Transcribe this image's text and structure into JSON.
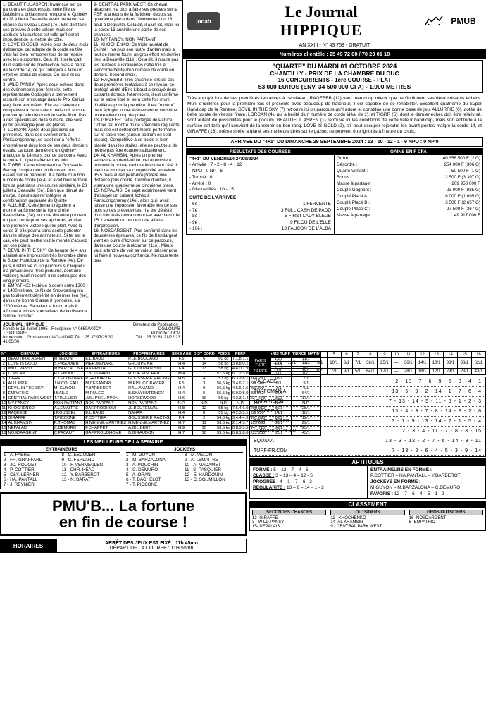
{
  "masthead": {
    "lonab": "lonab",
    "title1": "Le Journal",
    "title2": "HIPPIQUE",
    "pmub": "PMUB",
    "edition": "AN XXIII - N° 43 759 - GRATUIT",
    "tel": "Numéros clientèle : 25 49 72 00 / 70 20 01 10"
  },
  "race": {
    "l1": "\"QUARTE\" DU MARDI 01 OCTOBRE 2024",
    "l2": "CHANTILLY - PRIX DE LA CHAMBRE DU DUC",
    "l3": "16 CONCURRENTS - 1ère COURSE - PLAT",
    "l4": "53 000 EUROS (ENV. 34 500 000 CFA) - 1.900 METRES"
  },
  "para": "Très appuyé lors de ses premières tentatives à ce niveau, RAQEEBB (12) vaut beaucoup mieux que ne l'indiquent ses deux cuisants échecs. Muni d'œillères pour la première fois et présenté avec beaucoup de fraîcheur, il est capable de se réhabiliter. Excellent quatrième du Super Handicap de la Rentrée, DEVIL IN THE SKY (7) retrouve ici un parcours qu'il adore et constitue une bonne base de jeu. ALLURRIE (6), dotée de belle pointe de vitesse finale, LORCAN (4), qui a hérité d'un numéro de corde idéal (le 1), et TIGRR (5), dont le dernier échec doit être relativisé, sont autant de possibilités pour le podium. BEAUTIFUL ASPEN (1) retrouve ici les conditions de cette valeur handicap, mais son aptitude à la surface est telle qu'il convient de la retenir en bon rang. LOVE IS GOLD (2), s'il peut occuper rejoindre les avant-postes malgré la corde 14, et GIRAFFE (13), même si elle a glané ses meilleurs titres sur le gazon, ne peuvent être ignorés à l'heure du choix.",
  "arrivee": "ARRIVEE DU \"4+1\" DU DIMANCHE 29 SEPTEMBRE 2024 : 13 - 10 - 12 - 1 - 9 NPO : 0 NP 0",
  "resultats_hdr": "RESULTATS DES COURSES",
  "gains_hdr": "GAINS EN F CFA",
  "resultats": {
    "title": "\"4+1\" DU VENDREDI 27/09/2024",
    "arr": "- Arrivée : 7 - 2 - 8 - 4 - 12",
    "npo": "- NPO : 0  NP : 6",
    "tom": "- Tombé : 0",
    "arre": "- Arrêté : 0",
    "dis": "- Disqualifiés : 10 - 15",
    "suite": "SUITE DE L'ARRIVÉE",
    "s1l": "- 6è :",
    "s1r": "1   FERVENTE",
    "s2l": "- 7è :",
    "s2r": "3   FULL CASH DE PADD",
    "s3l": "- 8è :",
    "s3r": "5   FIRST LADY BLEUE",
    "s4l": "- 9è :",
    "s4r": "9   FILOU DE L'ELLE",
    "s5l": "- 10è :",
    "s5r": "13  FAUCON DE L'ALBA"
  },
  "gains": [
    [
      "Ordre :",
      "40 356 500 F (2 G)"
    ],
    [
      "Désordre :",
      "254 000 F (306 G)"
    ],
    [
      "Quarté Venant :",
      "50 500 F (1 G)"
    ],
    [
      "Bonus :",
      "12 500 F (3 397 G)"
    ],
    [
      "Masse à partager",
      "209 950 000 F"
    ],
    [
      "Couplé Gagnant :",
      "23 000 F (885 G)"
    ],
    [
      "Couplé Placé A :",
      "6 000 F (1 695 G)"
    ],
    [
      "Couplé Placé B :",
      "3 500 F (2 657 G)"
    ],
    [
      "Couplé Placé C :",
      "27 500 F (367 G)"
    ],
    [
      "Masse à partager",
      "49 917 000 F"
    ]
  ],
  "left_text": "1- BEAUTIFUL ASPEN: Invaincue sur ce parcours en deux essais, cette fille de Dabirsim a brillamment remporté le Quinté+ du 28 juillet à Deauville avant de tenter sa chance au niveau Listed (7e). Elle doit faire ses preuves à cette valeur, mais son aptitude à la surface est telle qu'il serait imprudent de la mettre de côté.\n2- LOVE IS GOLD: Après plus de deux mois d'absence, cet adepte de la corde en tête s'est fait bien remporter lors de sa reprise avec les supporters. Cela dit, il s'élançait d'un stalle sur de prédilection mais a hérité de la corde 14, ce qui l'obligera à faire un effort en début de course. Du pour et du contre.\n3- WILD PANSY: Après deux échecs dans des événements pour femelle, cette représentante Godolphin a pleinement rassuré son entourage dans le Prix Cerius (4e), face aux mâles. Elle est clairement compétitive à cette valeur mais doit encore prouver qu'elle découvrir le sable fibré. Pas à des spécialistes de la surface, elle sera plutôt envisagée pour les places.\n4- LORCAN: Après deux podiums au printemps, dans des événements à ParisLongchamp, ce sujet dur à l'effort a énormément déçu lors de ses deux derniers essais. La toute dernière d'un Quinté+ analogue la 14 mars, sur ce parcours. Avec la corde 1, il peut afferter très loin.\n5- TIGRR: Ce représentant de Gousserie Racing compte deux podiums en trois essais sur ce parcours. Il a hérité d'un bon numéro de corde (le 4) et avait bien terminé lors sa part dans une course similaire, le 28 juillet à Deauville (2e). Bien que dénué de marge, il peut espérer intégrer la combinaison gagnante du Quinté+.\n6- ALLURIE: Cette jument régulière a montré sa forme sur la ligne droite deauvillaise (3e), sur une distance pourtant un peu courte pour ses aptitudes, et vise une première victoire qui lui plaît. Avec la corde 3, elle pourra sans doute patienter dans le sillage des animateurs. Si tel est le cas, elle peut mettre tout le monde d'accord sur ces points.\n7- DEVIL IN THE SKY: Ce hongre de 4 ans a laissé une impression très favorable dans le Super Handicap de la Rentrée (4e). De plus, il retrouve ici un parcours sur lequel il n'a jamais déçu (trois podiums, dont une victoire). Sauf incident, il ne sortira pas des cinq premiers.\n8- EMPATHIC: Habitué à courir entre 1200 et 1400 mètres, ce fils de Showcasing n'a pas totalement démérité en dernier lieu (6e), dans une bonne Classe 3 lyonnaise, sur 2200 mètres. Sa valeur a fondu mais il affrontera ici des spécialistes de la distance. Simple outsider.",
  "right_text": "9- CENTRAL PARK WEST: Ce cheval attachant n'a plus à faire ses preuves sur la PSF et a repris de la fraîcheur depuis sa quatrième place dans l'événement du 18 août à Deauville. Cela dit, il a un lot, mais ici la corde 16 annihile une partie de ses chances.\n10- MY FANCY: NON PARTANT\n11- KHOCHENKO: Ce triple lauréat de Quinté+ n'a plus son lustre d'antan mais a tout de même fourni un gros effort en dernier lieu, à Deauville (11e). Cela dit, il n'aura pas les œillères australiennes cette fois et s'encorde hérité d'un numéro de corde en dehors. Second choix.\n12- RAQEEBB: Très chuchoté lors de ces deux premières tentatives à ce niveau, ce protégé abrité d'Eric Libaud a essuyé deux cuisants échecs. Néanmoins, il est confirmé sur le sable fibré et sera cette fois muni d'œillères pour la première. Il est \"moteur\" peut épingler un tel événement et constitue un excellent coup de poker.\n13- GIRAFFE: Cette protégée de Patrice Cottier fait montre d'une splendide régularité mais elle est nettement moins performante sur le sable fibré (aucun podium en sept essais). Compétitive à ce poids et bien placée dans les stalles, elle ne peut tout de même pas être écartée radicalement.\n14- AL KHAMSIN: Après un premier semestre en demi-teinte, cet attentiste a retrouvé la bonne carburation durant l'été. Il vient de montrer sa compétitivité en valeur 35,5 mais aurait peut-être préféré une distance plus courte. Comme d'autres, il visera une quatrième ou cinquième place.\n15- NEPALAIS: Ce sujet expérimenté vient d'essuyer un cuisant échec à ParisLongchamp (14e), alors qu'il avait laissé une impression favorable lors de ses trois sorties précédentes. Il a été délésté d'un kilo mais devra composer avec la corde 15. Le retenir ou non est une affaire d'impression.\n16- NOSDARGENT: Plus confirmé dans les deuxièmes épreuves, ce fils de Kendargent vient en outre d'échouer sur ce parcours, dans une course à réclamer (11e). Mieux vaut attendre de voir sa valeur baisser pour lui faire à nouveau confiance. Ne nous tente pas.",
  "credits": {
    "l1": "JOURNAL HIPPIQUE",
    "l2": "Fondé le 18 Juillet 1995 - Récépissé N° 0659/MIJCA-TGI/OUA/PF",
    "l3": "Impression : Groupement IAG-NIDAP Tél. : 25 37 97/25 30 41 05/06",
    "r1": "Directeur de Publication : DG/LONAB",
    "r2": "Publicité : DCM",
    "r3": "Tél. : 25.30.61.21/22/23"
  },
  "horses_hdr": [
    "N°",
    "CHEVAUX",
    "JOCKEYS",
    "ENTRAINEURS",
    "PROPRIETAIRES",
    "SEXE AGE",
    "DIST CORD",
    "POIDS",
    "PERF",
    "GAINS",
    "PARIS TURF",
    "TIERCE MATIN"
  ],
  "horses": [
    [
      "1",
      "BEAUTIFUL ASPEN",
      "M.VELON",
      "E.LIBAUD",
      "P.LE.BOUCAUD",
      "F.5",
      "6",
      "60 kg",
      "7.1.8.1.1",
      "143 560",
      "13/1",
      "11/1"
    ],
    [
      "2",
      "LOVE IS GOLD",
      "S.PASQUIER",
      "PIER.MENARD",
      "GROUPE KR",
      "H.4",
      "14",
      "58 kg",
      "3.0.8.0.2",
      "68 770",
      "12/1",
      "—"
    ],
    [
      "3",
      "WILD PANSY",
      "M.BARZALONA",
      "HA.PANTALL",
      "GODOLPHIN SNC",
      "F.4",
      "13",
      "58 kg",
      "4.4.0.1.9",
      "65 340",
      "11/1",
      "18/1"
    ],
    [
      "4",
      "LORCAN",
      "H.LEBOUC",
      "J.BOISNARD",
      "H.TOE.FISCHER",
      "M.4",
      "1",
      "57,5 kg",
      "6.7.2.3.0",
      "76 670",
      "9/1",
      "10/1"
    ],
    [
      "5",
      "TIGRR",
      "C.LECOEUVRE",
      "P.GROUALLE",
      "GOUSSERIE RACING",
      "H.5",
      "4",
      "57 kg",
      "6.3.2.8.1",
      "164 280",
      "10/1",
      "7/1"
    ],
    [
      "6",
      "ALLURRIE",
      "J.NICOLEAU",
      "M.CESANDRI",
      "M.RISUCC.RAVIER",
      "F.5",
      "3",
      "56,5 kg",
      "3.4.6.7.1",
      "99 140",
      "8/1",
      "9/1"
    ],
    [
      "7",
      "DEVIL IN THE SKY",
      "M. GUYON",
      "Y.BARBEROT",
      "P.ALLAMAND",
      "H.4",
      "9",
      "56,5 kg",
      "4.5.6.1.6",
      "66 390",
      "7/1",
      "5/1"
    ],
    [
      "8",
      "EMPATHIC",
      "I.BAILS",
      "M.RULEC",
      "B.SKAYHUTDINOV",
      "H.4",
      "5",
      "56,5 kg",
      "6.0.0.8.0",
      "55 262",
      "36/1",
      "64/1"
    ],
    [
      "9",
      "CENTRAL PARK WEST",
      "T.TRULLIER",
      "JUL. PHELIPPON",
      "HORSEWOOD",
      "H.6",
      "16",
      "56 kg",
      "4.2.3.1.4",
      "227 473",
      "25/1",
      "17/1"
    ],
    [
      "10",
      "MY FANCY",
      "NON PARTANT",
      "NON PARTANT",
      "NON PARTANT",
      "N.P.",
      "N.P.",
      "N.P.",
      "N.P.",
      "N.P.",
      "N.P.",
      "N.P."
    ],
    [
      "11",
      "KHOCHENKO",
      "A.LEMAITRE",
      "DAF.PRODHOM",
      "JL.BOUTENVAL",
      "H.8",
      "12",
      "55 kg",
      "7.5.4.6.0",
      "209 910",
      "36/1",
      "28/1"
    ],
    [
      "12",
      "RAQEEBB",
      "I.ROUSSEL",
      "E.LIBAUD",
      "NAHAR",
      "H.4",
      "8",
      "55 kg",
      "4.2.3.3.1",
      "59 550",
      "14/1",
      "18/1"
    ],
    [
      "13",
      "GIRAFFE",
      "T.PICCONE",
      "P.COTTIER",
      "GOUSSERIE RACING",
      "F.4",
      "2",
      "54,5 kg",
      "3.4.4.4.3",
      "101 690",
      "18/1",
      "12/1"
    ],
    [
      "14",
      "AL KHAMSIN",
      "R.THOMAS",
      "H.MENNE.MARTINEZ",
      "H.MENNE.MARTINEZ",
      "H.7",
      "11",
      "53,5 kg",
      "2.1.4.3.7",
      "129 693",
      "38/1",
      "29/1"
    ],
    [
      "15",
      "NEPALAIS",
      "C.DEMURO",
      "F.CHAPPET",
      "A.GILIBERT",
      "H.9",
      "15",
      "53,5 kg",
      "0.8.3.3.5",
      "147 710",
      "38/1",
      "23/1"
    ],
    [
      "16",
      "NOSDARGENT",
      "C.PACAUT",
      "GAF.PROUDHOME",
      "B.GIRAUDON",
      "H.7",
      "10",
      "53,5 kg",
      "0.8.1.8.0",
      "222 233",
      "62/1",
      "43/1"
    ]
  ],
  "meilleurs_hdr": "LES MEILLEURS DE LA SEMAINE",
  "meilleurs": {
    "ent_hdr": "ENTRAINEURS",
    "ent": [
      "1 - A. FABRE",
      "8 - C. ESCUDER",
      "2 - FH. GRAFFARD",
      "9 - C. FERLAND",
      "3 - JC. ROUGET",
      "10 - F. VERMEULEN",
      "4 - P. COTTIER",
      "11 - CHR. HEAD",
      "5 - C&Y. LERNER",
      "12 - Y. BARBEROT",
      "6 - HA. PANTALL",
      "13 - N. BARATTI",
      "7 - J. REYNIER"
    ],
    "joc_hdr": "JOCKEYS",
    "joc": [
      "1 - M. GUYON",
      "8 - M. VELON",
      "2 - M. BARZALONA",
      "9 - A. LEMAITRE",
      "3 - A. POUCHIN",
      "10 - A. MADAMET",
      "4 - C. DEMURO",
      "11 - S. PASQUIER",
      "5 - A. ORANI",
      "12 - E. HARDOUIN",
      "6 - T. BACHELOT",
      "13 - C. SOUMILLON",
      "7 - T. PICCONE"
    ]
  },
  "ad": {
    "l1": "PMU'B... La fortune",
    "l2": "en fin de course !"
  },
  "horaires_lbl": "HORAIRES",
  "arret": {
    "l1": "ARRÊT DES JEUX EST FIXÉ : 11h 45mn",
    "l2": "DÉPART DE LA COURSE : 11H 55mn"
  },
  "grid": {
    "r1_lbl": "PARIS TURF",
    "r1": [
      "1",
      "2",
      "3",
      "4",
      "5",
      "6",
      "7",
      "8",
      "9",
      "10",
      "11",
      "12",
      "13",
      "14",
      "15",
      "16"
    ],
    "r2": [
      "13/1",
      "12/1",
      "11/1",
      "9/1",
      "10/1",
      "8/1",
      "7/1",
      "36/1",
      "25/1",
      "—",
      "36/1",
      "14/1",
      "18/1",
      "38/1",
      "38/1",
      "62/1"
    ],
    "r3_lbl": "TIERCE",
    "r3": [
      "11/1",
      "—",
      "18/1",
      "10/1",
      "7/1",
      "9/1",
      "5/1",
      "64/1",
      "17/1",
      "—",
      "28/1",
      "18/1",
      "12/1",
      "29/1",
      "23/1",
      "43/1"
    ]
  },
  "pronos": [
    [
      "L'ALSACE",
      "2 - 13 - 7 - 6 - 9 - 5 - 3 - 4 - 1"
    ],
    [
      "TURFOMANIA",
      "13 - 5 - 9 - 2 - 14 - 1 - 7 - 6 - 4"
    ],
    [
      "LE PARISIEN",
      "7 - 13 - 14 - 5 - 11 - 6 - 1 - 2 - 3"
    ],
    [
      "EUROPE 1",
      "13 - 4 - 3 - 7 - 8 - 14 - 9 - 2 - 6"
    ],
    [
      "ZONE-TURF.FR",
      "3 - 7 - 9 - 13 - 14 - 2 - 1 - 5 - 4"
    ],
    [
      "COURRIER PICARD",
      "2 - 3 - 4 - 11 - 7 - 8 - 3 - 15"
    ],
    [
      "EQUIDIA",
      "13 - 3 - 12 - 2 - 7 - 6 - 14 - 9 - 11"
    ],
    [
      "TURF-FR.COM",
      "7 - 13 - 2 - 6 - 4 - 5 - 3 - 9 - 14"
    ]
  ],
  "apt_hdr": "APTITUDES",
  "apt_left": [
    [
      "FORME :",
      "5 – 12 – 7 – 4 - 6"
    ],
    [
      "CLASSE :",
      "3 – 13 – 4 – 12 - 5"
    ],
    [
      "PROGRES :",
      "4 – 1 – 7 – 6 - 3"
    ],
    [
      "REGULARITE :",
      "13 – 6 – 14 – 1 - 2"
    ]
  ],
  "apt_right": {
    "ent_h": "ENTRAINEURS EN FORME :",
    "ent": "P.COTTIER – HA.PANTALL – Y.BARBEROT",
    "joc_h": "JOCKEYS EN FORME :",
    "joc": "M.GUYON – M.BARZALONA – C.DEMURO",
    "fav_h": "FAVORIS :",
    "fav": "12 – 7 – 6 – 4 – 5 – 1 - 2"
  },
  "class_hdr": "CLASSEMENT",
  "class": {
    "c1h": "SECONDES CHANCES",
    "c1": [
      "13- GIRAFFE",
      "3 - WILD PANSY",
      "15- NEPALAIS"
    ],
    "c2h": "OUTSIDERS",
    "c2": [
      "11 - KHOCHENKO",
      "14- AL KHAMSIN",
      "9 - CENTRAL PARK WEST"
    ],
    "c3h": "GROS OUTSIDERS",
    "c3": [
      "16- NOSDARGENT",
      "8 -EMPATHIC"
    ]
  }
}
